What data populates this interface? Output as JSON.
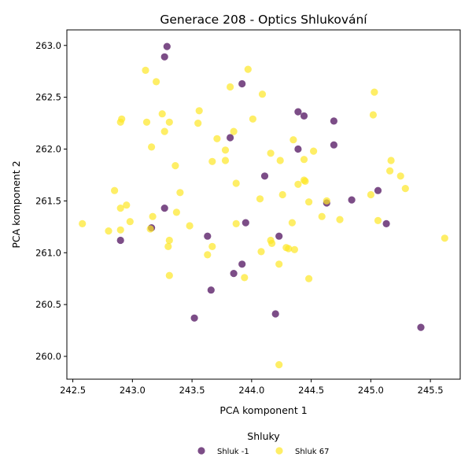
{
  "chart_data": {
    "type": "scatter",
    "title": "Generace 208 - Optics Shlukování",
    "xlabel": "PCA komponent 1",
    "ylabel": "PCA komponent 2",
    "xlim": [
      242.45,
      245.75
    ],
    "ylim": [
      259.78,
      263.15
    ],
    "xticks": [
      "242.5",
      "243.0",
      "243.5",
      "244.0",
      "244.5",
      "245.0",
      "245.5"
    ],
    "yticks": [
      "260.0",
      "260.5",
      "261.0",
      "261.5",
      "262.0",
      "262.5",
      "263.0"
    ],
    "grid": false,
    "legend": {
      "title": "Shluky",
      "position": "bottom-center"
    },
    "series": [
      {
        "name": "Shluk -1",
        "color": "#440154",
        "points": [
          [
            243.29,
            262.99
          ],
          [
            243.27,
            262.89
          ],
          [
            243.92,
            262.63
          ],
          [
            244.39,
            262.36
          ],
          [
            244.44,
            262.32
          ],
          [
            244.69,
            262.27
          ],
          [
            243.82,
            262.11
          ],
          [
            244.39,
            262.0
          ],
          [
            244.69,
            262.04
          ],
          [
            244.11,
            261.74
          ],
          [
            245.06,
            261.6
          ],
          [
            244.84,
            261.51
          ],
          [
            244.63,
            261.48
          ],
          [
            243.27,
            261.43
          ],
          [
            243.95,
            261.29
          ],
          [
            245.13,
            261.28
          ],
          [
            243.16,
            261.24
          ],
          [
            243.63,
            261.16
          ],
          [
            244.23,
            261.16
          ],
          [
            242.9,
            261.12
          ],
          [
            243.92,
            260.89
          ],
          [
            243.85,
            260.8
          ],
          [
            243.66,
            260.64
          ],
          [
            244.2,
            260.41
          ],
          [
            243.52,
            260.37
          ],
          [
            245.42,
            260.28
          ]
        ]
      },
      {
        "name": "Shluk 67",
        "color": "#fde725",
        "points": [
          [
            243.11,
            262.76
          ],
          [
            243.97,
            262.77
          ],
          [
            243.2,
            262.65
          ],
          [
            243.82,
            262.6
          ],
          [
            244.09,
            262.53
          ],
          [
            245.03,
            262.55
          ],
          [
            243.25,
            262.34
          ],
          [
            243.56,
            262.37
          ],
          [
            244.01,
            262.29
          ],
          [
            242.91,
            262.29
          ],
          [
            243.12,
            262.26
          ],
          [
            242.9,
            262.26
          ],
          [
            243.31,
            262.26
          ],
          [
            243.55,
            262.25
          ],
          [
            245.02,
            262.33
          ],
          [
            243.85,
            262.17
          ],
          [
            243.27,
            262.17
          ],
          [
            243.71,
            262.1
          ],
          [
            244.35,
            262.09
          ],
          [
            243.16,
            262.02
          ],
          [
            243.78,
            261.99
          ],
          [
            244.16,
            261.96
          ],
          [
            244.52,
            261.98
          ],
          [
            243.67,
            261.88
          ],
          [
            243.78,
            261.89
          ],
          [
            244.24,
            261.89
          ],
          [
            244.44,
            261.9
          ],
          [
            245.17,
            261.89
          ],
          [
            243.36,
            261.84
          ],
          [
            245.16,
            261.79
          ],
          [
            245.25,
            261.74
          ],
          [
            243.87,
            261.67
          ],
          [
            244.39,
            261.66
          ],
          [
            244.45,
            261.69
          ],
          [
            244.44,
            261.7
          ],
          [
            245.29,
            261.62
          ],
          [
            242.85,
            261.6
          ],
          [
            243.4,
            261.58
          ],
          [
            244.26,
            261.56
          ],
          [
            245.0,
            261.56
          ],
          [
            244.07,
            261.52
          ],
          [
            244.63,
            261.5
          ],
          [
            244.48,
            261.49
          ],
          [
            242.95,
            261.46
          ],
          [
            242.9,
            261.43
          ],
          [
            243.37,
            261.39
          ],
          [
            244.59,
            261.35
          ],
          [
            243.17,
            261.35
          ],
          [
            244.74,
            261.32
          ],
          [
            245.06,
            261.31
          ],
          [
            242.98,
            261.3
          ],
          [
            244.34,
            261.29
          ],
          [
            242.58,
            261.28
          ],
          [
            243.87,
            261.28
          ],
          [
            243.48,
            261.26
          ],
          [
            243.15,
            261.23
          ],
          [
            242.9,
            261.22
          ],
          [
            242.8,
            261.21
          ],
          [
            245.62,
            261.14
          ],
          [
            243.31,
            261.12
          ],
          [
            244.16,
            261.12
          ],
          [
            244.17,
            261.09
          ],
          [
            243.3,
            261.06
          ],
          [
            243.67,
            261.06
          ],
          [
            244.29,
            261.05
          ],
          [
            244.31,
            261.04
          ],
          [
            244.36,
            261.03
          ],
          [
            244.08,
            261.01
          ],
          [
            243.63,
            260.98
          ],
          [
            244.23,
            260.89
          ],
          [
            243.31,
            260.78
          ],
          [
            243.94,
            260.76
          ],
          [
            244.48,
            260.75
          ],
          [
            244.23,
            259.92
          ]
        ]
      }
    ]
  }
}
